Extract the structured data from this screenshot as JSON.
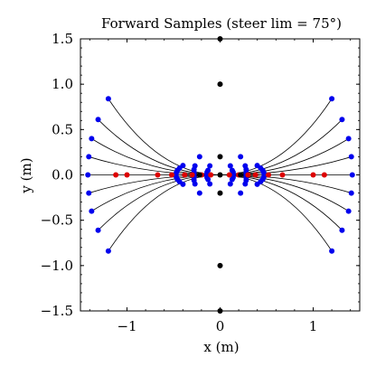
{
  "chart_data": {
    "type": "scatter",
    "title": "Forward Samples (steer lim = 75°)",
    "xlabel": "x (m)",
    "ylabel": "y (m)",
    "xlim": [
      -1.5,
      1.5
    ],
    "ylim": [
      -1.5,
      1.5
    ],
    "x_ticks": [
      -1,
      0,
      1
    ],
    "x_tick_labels": [
      "−1",
      "0",
      "1"
    ],
    "y_ticks": [
      -1.5,
      -1.0,
      -0.5,
      0.0,
      0.5,
      1.0,
      1.5
    ],
    "y_tick_labels": [
      "−1.5",
      "−1.0",
      "−0.5",
      "0.0",
      "0.5",
      "1.0",
      "1.5"
    ],
    "grid": false,
    "colors": {
      "blue": "#0000ee",
      "red": "#dd0000",
      "black": "#000000",
      "line": "#000000"
    },
    "endpoint_lists": {
      "outer": [
        [
          1.42,
          0.0
        ],
        [
          1.41,
          0.2
        ],
        [
          1.38,
          0.4
        ],
        [
          1.31,
          0.61
        ],
        [
          1.2,
          0.84
        ],
        [
          1.41,
          -0.2
        ],
        [
          1.38,
          -0.4
        ],
        [
          1.31,
          -0.61
        ],
        [
          1.2,
          -0.84
        ]
      ],
      "middle": [
        [
          0.28,
          0.0
        ],
        [
          0.28,
          0.03
        ],
        [
          0.28,
          0.06
        ],
        [
          0.27,
          0.1
        ],
        [
          0.22,
          0.2
        ],
        [
          0.28,
          -0.03
        ],
        [
          0.28,
          -0.06
        ],
        [
          0.27,
          -0.1
        ],
        [
          0.22,
          -0.2
        ]
      ],
      "inner": [
        [
          0.14,
          0.0
        ],
        [
          0.14,
          0.01
        ],
        [
          0.14,
          0.03
        ],
        [
          0.13,
          0.05
        ],
        [
          0.11,
          0.1
        ],
        [
          0.14,
          -0.01
        ],
        [
          0.14,
          -0.03
        ],
        [
          0.13,
          -0.05
        ],
        [
          0.11,
          -0.1
        ]
      ]
    },
    "red_points": [
      [
        1.12,
        0.0
      ],
      [
        1.0,
        0.0
      ],
      [
        0.67,
        0.0
      ],
      [
        0.52,
        0.0
      ],
      [
        0.38,
        0.0
      ],
      [
        0.3,
        0.0
      ],
      [
        0.2,
        0.0
      ],
      [
        0.1,
        0.0
      ],
      [
        -1.12,
        0.0
      ],
      [
        -1.0,
        0.0
      ],
      [
        -0.67,
        0.0
      ],
      [
        -0.52,
        0.0
      ],
      [
        -0.38,
        0.0
      ],
      [
        -0.3,
        0.0
      ],
      [
        -0.2,
        0.0
      ],
      [
        -0.1,
        0.0
      ]
    ],
    "black_points": [
      [
        0.0,
        1.5
      ],
      [
        0.0,
        1.0
      ],
      [
        0.0,
        0.2
      ],
      [
        0.0,
        -0.2
      ],
      [
        0.0,
        -1.0
      ],
      [
        0.0,
        -1.5
      ],
      [
        0.22,
        0.0
      ],
      [
        -0.22,
        0.0
      ],
      [
        0.0,
        0.0
      ]
    ]
  }
}
